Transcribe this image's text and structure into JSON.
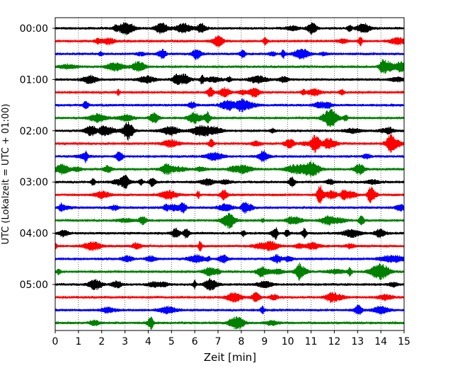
{
  "chart_data": {
    "type": "line",
    "title": "",
    "xlabel": "Zeit  [min]",
    "ylabel": "UTC (Lokalzeit = UTC + 01:00)",
    "xlim": [
      0,
      15
    ],
    "x_ticks": [
      "0",
      "1",
      "2",
      "3",
      "4",
      "5",
      "6",
      "7",
      "8",
      "9",
      "10",
      "11",
      "12",
      "13",
      "14",
      "15"
    ],
    "y_tick_labels": [
      "00:00",
      "01:00",
      "02:00",
      "03:00",
      "04:00",
      "05:00"
    ],
    "trace_interval_min": 15,
    "grid": "vertical-dotted",
    "trace_colors": [
      "#000000",
      "#ff0000",
      "#0000ff",
      "#008000"
    ],
    "traces": [
      {
        "start": "00:00",
        "color": "#000000"
      },
      {
        "start": "00:15",
        "color": "#ff0000"
      },
      {
        "start": "00:30",
        "color": "#0000ff"
      },
      {
        "start": "00:45",
        "color": "#008000"
      },
      {
        "start": "01:00",
        "color": "#000000"
      },
      {
        "start": "01:15",
        "color": "#ff0000"
      },
      {
        "start": "01:30",
        "color": "#0000ff"
      },
      {
        "start": "01:45",
        "color": "#008000"
      },
      {
        "start": "02:00",
        "color": "#000000"
      },
      {
        "start": "02:15",
        "color": "#ff0000"
      },
      {
        "start": "02:30",
        "color": "#0000ff"
      },
      {
        "start": "02:45",
        "color": "#008000"
      },
      {
        "start": "03:00",
        "color": "#000000"
      },
      {
        "start": "03:15",
        "color": "#ff0000"
      },
      {
        "start": "03:30",
        "color": "#0000ff"
      },
      {
        "start": "03:45",
        "color": "#008000"
      },
      {
        "start": "04:00",
        "color": "#000000"
      },
      {
        "start": "04:15",
        "color": "#ff0000"
      },
      {
        "start": "04:30",
        "color": "#0000ff"
      },
      {
        "start": "04:45",
        "color": "#008000"
      },
      {
        "start": "05:00",
        "color": "#000000"
      },
      {
        "start": "05:15",
        "color": "#ff0000"
      },
      {
        "start": "05:30",
        "color": "#0000ff"
      },
      {
        "start": "05:45",
        "color": "#008000"
      }
    ]
  }
}
